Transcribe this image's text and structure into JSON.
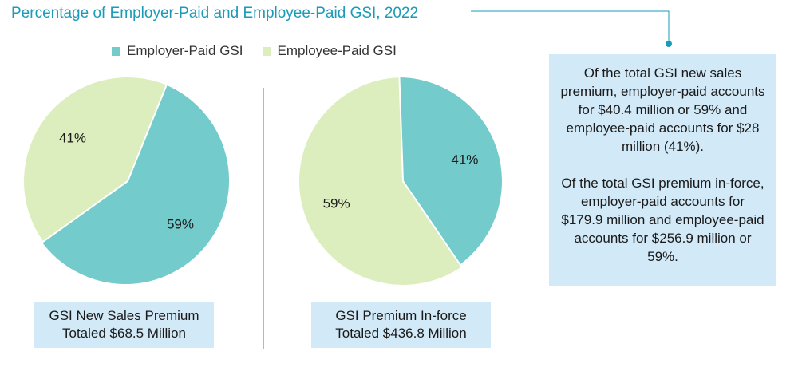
{
  "title": "Percentage of Employer-Paid and Employee-Paid GSI, 2022",
  "colors": {
    "employer": "#74cbcb",
    "employee": "#ddeebe",
    "accent": "#1a9bb8",
    "box": "#d2e9f7"
  },
  "legend": [
    {
      "label": "Employer-Paid GSI",
      "color": "#74cbcb"
    },
    {
      "label": "Employee-Paid GSI",
      "color": "#ddeebe"
    }
  ],
  "chart_data": [
    {
      "type": "pie",
      "title": "GSI New Sales Premium",
      "subtitle": "Totaled $68.5 Million",
      "slices": [
        {
          "name": "Employer-Paid GSI",
          "value": 59,
          "label": "59%"
        },
        {
          "name": "Employee-Paid GSI",
          "value": 41,
          "label": "41%"
        }
      ]
    },
    {
      "type": "pie",
      "title": "GSI Premium In-force",
      "subtitle": "Totaled $436.8 Million",
      "slices": [
        {
          "name": "Employer-Paid GSI",
          "value": 41,
          "label": "41%"
        },
        {
          "name": "Employee-Paid GSI",
          "value": 59,
          "label": "59%"
        }
      ]
    }
  ],
  "note": {
    "paragraph1": "Of the total GSI new sales premium, employer-paid accounts for $40.4 million or 59% and employee-paid accounts for $28 million (41%).",
    "paragraph2": "Of the total GSI premium in-force, employer-paid accounts for $179.9 million and employee-paid accounts for $256.9 million or 59%."
  }
}
